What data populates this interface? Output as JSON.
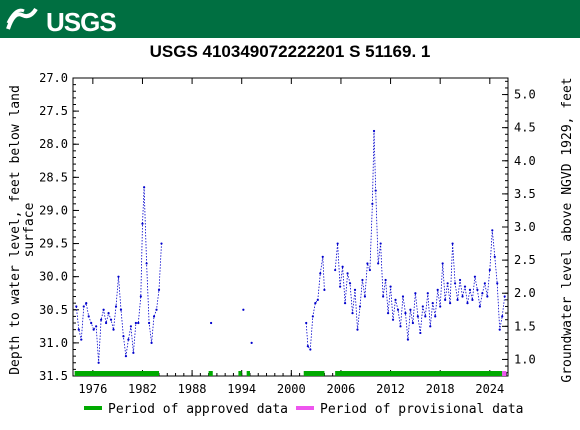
{
  "header": {
    "logo_text": "USGS",
    "banner_color": "#006f41"
  },
  "chart_data": {
    "type": "scatter",
    "title": "USGS 410349072222201 S 51169. 1",
    "ylabel_left": "Depth to water level, feet below land surface",
    "ylabel_right": "Groundwater level above NGVD 1929, feet",
    "xlim": [
      1973.6,
      2026.2
    ],
    "ylim_left": [
      31.5,
      27.0
    ],
    "ylim_right": [
      0.75,
      5.25
    ],
    "x_ticks": [
      1976,
      1982,
      1988,
      1994,
      2000,
      2006,
      2012,
      2018,
      2024
    ],
    "y_ticks_left": [
      "27.0",
      "27.5",
      "28.0",
      "28.5",
      "29.0",
      "29.5",
      "30.0",
      "30.5",
      "31.0",
      "31.5"
    ],
    "y_ticks_right": [
      "1.0",
      "1.5",
      "2.0",
      "2.5",
      "3.0",
      "3.5",
      "4.0",
      "4.5",
      "5.0"
    ],
    "grid": false,
    "series_color": "#0000cc",
    "approved_color": "#00aa00",
    "provisional_color": "#ee55ee",
    "legend": [
      {
        "label": "Period of approved data",
        "color": "#00aa00"
      },
      {
        "label": "Period of provisional data",
        "color": "#ee55ee"
      }
    ],
    "approved_periods": [
      [
        1973.8,
        1984.0
      ],
      [
        1990.0,
        1990.5
      ],
      [
        1993.6,
        1994.0
      ],
      [
        1994.6,
        1995.0
      ],
      [
        2001.5,
        2004.0
      ],
      [
        2005.3,
        2025.5
      ]
    ],
    "provisional_periods": [
      [
        2025.5,
        2026.0
      ]
    ],
    "segments": [
      [
        [
          1974.0,
          30.45
        ],
        [
          1974.3,
          30.8
        ],
        [
          1974.6,
          30.95
        ],
        [
          1974.9,
          30.45
        ],
        [
          1975.2,
          30.4
        ],
        [
          1975.5,
          30.6
        ],
        [
          1975.8,
          30.7
        ],
        [
          1976.1,
          30.8
        ],
        [
          1976.4,
          30.75
        ],
        [
          1976.7,
          31.3
        ],
        [
          1977.0,
          30.65
        ],
        [
          1977.3,
          30.5
        ],
        [
          1977.6,
          30.7
        ],
        [
          1977.9,
          30.55
        ],
        [
          1978.2,
          30.65
        ],
        [
          1978.5,
          30.8
        ],
        [
          1978.8,
          30.45
        ],
        [
          1979.1,
          30.0
        ],
        [
          1979.4,
          30.5
        ],
        [
          1979.7,
          30.9
        ],
        [
          1980.0,
          31.2
        ],
        [
          1980.3,
          30.95
        ],
        [
          1980.6,
          30.75
        ],
        [
          1980.9,
          31.15
        ],
        [
          1981.2,
          30.7
        ],
        [
          1981.5,
          30.7
        ],
        [
          1981.8,
          30.3
        ],
        [
          1982.0,
          29.2
        ],
        [
          1982.2,
          28.65
        ],
        [
          1982.5,
          29.8
        ],
        [
          1982.8,
          30.7
        ],
        [
          1983.1,
          31.0
        ],
        [
          1983.4,
          30.6
        ],
        [
          1983.7,
          30.5
        ],
        [
          1984.0,
          30.2
        ],
        [
          1984.3,
          29.5
        ]
      ],
      [
        [
          1990.3,
          30.7
        ]
      ],
      [
        [
          1994.2,
          30.5
        ]
      ],
      [
        [
          1995.2,
          31.0
        ]
      ],
      [
        [
          2001.8,
          30.7
        ],
        [
          2002.0,
          31.05
        ],
        [
          2002.3,
          31.1
        ],
        [
          2002.6,
          30.6
        ],
        [
          2002.9,
          30.4
        ],
        [
          2003.2,
          30.35
        ],
        [
          2003.5,
          29.95
        ],
        [
          2003.8,
          29.7
        ],
        [
          2004.0,
          30.2
        ]
      ],
      [
        [
          2005.3,
          29.9
        ],
        [
          2005.6,
          29.5
        ],
        [
          2005.9,
          30.15
        ],
        [
          2006.2,
          29.85
        ],
        [
          2006.5,
          30.4
        ],
        [
          2006.8,
          29.95
        ],
        [
          2007.1,
          30.1
        ],
        [
          2007.4,
          30.55
        ],
        [
          2007.7,
          30.2
        ],
        [
          2008.0,
          30.8
        ],
        [
          2008.3,
          30.45
        ],
        [
          2008.6,
          30.05
        ],
        [
          2008.9,
          30.3
        ],
        [
          2009.2,
          29.8
        ],
        [
          2009.5,
          29.9
        ],
        [
          2009.8,
          28.9
        ],
        [
          2010.0,
          27.8
        ],
        [
          2010.2,
          28.7
        ],
        [
          2010.5,
          29.8
        ],
        [
          2010.8,
          29.5
        ],
        [
          2011.1,
          30.3
        ],
        [
          2011.4,
          30.05
        ],
        [
          2011.7,
          30.55
        ],
        [
          2012.0,
          30.15
        ],
        [
          2012.3,
          30.65
        ],
        [
          2012.6,
          30.35
        ],
        [
          2012.9,
          30.5
        ],
        [
          2013.2,
          30.75
        ],
        [
          2013.5,
          30.3
        ],
        [
          2013.8,
          30.55
        ],
        [
          2014.1,
          30.95
        ],
        [
          2014.4,
          30.5
        ],
        [
          2014.7,
          30.7
        ],
        [
          2015.0,
          30.25
        ],
        [
          2015.3,
          30.6
        ],
        [
          2015.6,
          30.85
        ],
        [
          2015.9,
          30.45
        ],
        [
          2016.2,
          30.6
        ],
        [
          2016.5,
          30.25
        ],
        [
          2016.8,
          30.75
        ],
        [
          2017.1,
          30.4
        ],
        [
          2017.4,
          30.6
        ],
        [
          2017.7,
          30.2
        ],
        [
          2018.0,
          30.45
        ],
        [
          2018.3,
          29.8
        ],
        [
          2018.6,
          30.35
        ],
        [
          2018.9,
          30.1
        ],
        [
          2019.2,
          30.4
        ],
        [
          2019.5,
          29.5
        ],
        [
          2019.8,
          30.1
        ],
        [
          2020.1,
          30.35
        ],
        [
          2020.4,
          30.05
        ],
        [
          2020.7,
          30.3
        ],
        [
          2021.0,
          30.15
        ],
        [
          2021.3,
          30.4
        ],
        [
          2021.6,
          30.2
        ],
        [
          2021.9,
          30.35
        ],
        [
          2022.2,
          30.0
        ],
        [
          2022.5,
          30.2
        ],
        [
          2022.8,
          30.45
        ],
        [
          2023.1,
          30.25
        ],
        [
          2023.4,
          30.1
        ],
        [
          2023.7,
          30.3
        ],
        [
          2024.0,
          29.9
        ],
        [
          2024.3,
          29.3
        ],
        [
          2024.6,
          29.7
        ],
        [
          2024.9,
          30.1
        ],
        [
          2025.2,
          30.8
        ],
        [
          2025.5,
          30.6
        ],
        [
          2025.8,
          30.3
        ]
      ]
    ]
  }
}
